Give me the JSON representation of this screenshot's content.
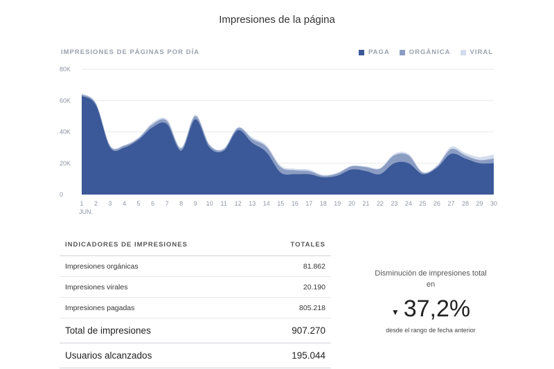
{
  "page": {
    "title": "Impresiones de la página"
  },
  "chart_data": {
    "type": "area",
    "title": "IMPRESIONES DE PÁGINAS POR DÍA",
    "stacked": true,
    "x": [
      1,
      2,
      3,
      4,
      5,
      6,
      7,
      8,
      9,
      10,
      11,
      12,
      13,
      14,
      15,
      16,
      17,
      18,
      19,
      20,
      21,
      22,
      23,
      24,
      25,
      26,
      27,
      28,
      29,
      30
    ],
    "x_tick_labels": [
      "1",
      "2",
      "3",
      "4",
      "5",
      "6",
      "7",
      "8",
      "9",
      "10",
      "11",
      "12",
      "13",
      "14",
      "15",
      "16",
      "17",
      "18",
      "19",
      "20",
      "21",
      "22",
      "23",
      "24",
      "25",
      "26",
      "27",
      "28",
      "29",
      "30"
    ],
    "x_sublabel": "JUN.",
    "y_ticks": [
      0,
      20000,
      40000,
      60000,
      80000
    ],
    "y_tick_labels": [
      "0",
      "20K",
      "40K",
      "60K",
      "80K"
    ],
    "ylim": [
      0,
      80000
    ],
    "grid": true,
    "legend_position": "top-right",
    "series": [
      {
        "name": "PAGA",
        "color": "#3b5998",
        "values": [
          63000,
          57000,
          30000,
          30000,
          35000,
          43000,
          45000,
          28000,
          48000,
          30000,
          28000,
          41000,
          33000,
          27000,
          14000,
          13000,
          13000,
          11000,
          12000,
          16000,
          15000,
          13000,
          20000,
          20000,
          13000,
          17000,
          26000,
          23000,
          20000,
          20000
        ]
      },
      {
        "name": "ORGÁNICA",
        "color": "#8b9dc3",
        "values": [
          1000,
          1000,
          1000,
          1200,
          1000,
          2000,
          2000,
          1500,
          2000,
          1500,
          1000,
          1500,
          2500,
          3500,
          3500,
          2500,
          2000,
          1000,
          1500,
          2000,
          2500,
          3500,
          5000,
          5000,
          1000,
          1000,
          3000,
          2000,
          2000,
          3000
        ]
      },
      {
        "name": "VIRAL",
        "color": "#d3dcee",
        "values": [
          500,
          500,
          500,
          500,
          500,
          1000,
          1000,
          500,
          1000,
          500,
          500,
          500,
          1000,
          1000,
          1000,
          1000,
          1000,
          500,
          500,
          500,
          500,
          500,
          1000,
          1000,
          500,
          500,
          1500,
          1500,
          2000,
          2500
        ]
      }
    ]
  },
  "table": {
    "header_left": "INDICADORES DE IMPRESIONES",
    "header_right": "TOTALES",
    "rows": [
      {
        "label": "Impresiones orgánicas",
        "value": "81.862"
      },
      {
        "label": "Impresiones virales",
        "value": "20.190"
      },
      {
        "label": "Impresiones pagadas",
        "value": "805.218"
      }
    ],
    "totals": [
      {
        "label": "Total de impresiones",
        "value": "907.270"
      },
      {
        "label": "Usuarios alcanzados",
        "value": "195.044"
      }
    ]
  },
  "summary": {
    "label_line1": "Disminución de impresiones total",
    "label_line2": "en",
    "arrow": "▼",
    "value": "37,2%",
    "caption": "desde el rango de fecha anterior"
  }
}
